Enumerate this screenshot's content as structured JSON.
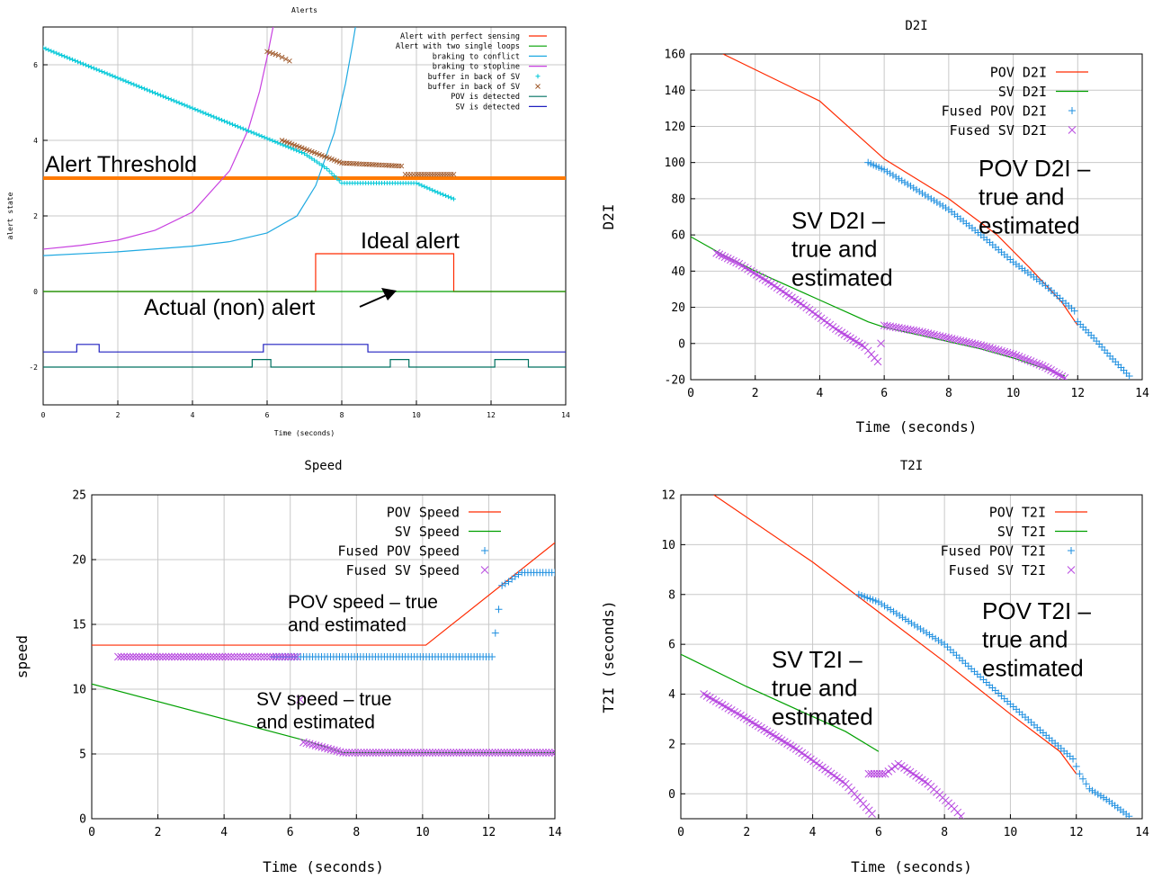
{
  "chart_data": [
    {
      "id": "alerts",
      "type": "line",
      "title": "Alerts",
      "xlabel": "Time (seconds)",
      "ylabel": "alert state",
      "xlim": [
        0,
        14
      ],
      "ylim": [
        -3,
        7
      ],
      "xticks": [
        0,
        2,
        4,
        6,
        8,
        10,
        12,
        14
      ],
      "yticks": [
        -2,
        0,
        2,
        4,
        6
      ],
      "grid": true,
      "legend_position": "top-right",
      "series": [
        {
          "name": "Alert with perfect sensing",
          "kind": "line",
          "color": "#ff2a00",
          "x": [
            0,
            7.3,
            7.3,
            11.0,
            11.0,
            14
          ],
          "y": [
            0,
            0,
            1,
            1,
            0,
            0
          ]
        },
        {
          "name": "Alert with two single loops",
          "kind": "line",
          "color": "#00a000",
          "x": [
            0,
            14
          ],
          "y": [
            0,
            0
          ]
        },
        {
          "name": "braking to conflict",
          "kind": "line",
          "color": "#1fa9e1",
          "x": [
            0,
            2,
            4,
            5,
            6,
            6.8,
            7.3,
            7.8,
            8.1,
            8.3,
            8.4
          ],
          "y": [
            0.95,
            1.05,
            1.2,
            1.32,
            1.55,
            2.0,
            2.8,
            4.2,
            5.5,
            6.6,
            7.2
          ]
        },
        {
          "name": "braking to stopline",
          "kind": "line",
          "color": "#c840e0",
          "x": [
            0,
            1,
            2,
            3,
            4,
            5,
            5.5,
            5.8,
            6.0,
            6.1,
            6.2
          ],
          "y": [
            1.12,
            1.22,
            1.36,
            1.62,
            2.1,
            3.2,
            4.3,
            5.3,
            6.2,
            6.7,
            7.2
          ]
        },
        {
          "name": "buffer in back of SV",
          "kind": "plus",
          "color": "#00c8d8",
          "x": [
            0,
            1,
            2,
            3,
            4,
            5,
            6,
            7,
            7.6,
            8,
            9,
            10,
            10.5,
            11
          ],
          "y": [
            6.45,
            6.05,
            5.65,
            5.25,
            4.85,
            4.45,
            4.05,
            3.65,
            3.25,
            2.87,
            2.87,
            2.87,
            2.65,
            2.45
          ]
        },
        {
          "name": "buffer in back of SV",
          "kind": "cross",
          "color": "#a05a2c",
          "x": [
            6.0,
            6.15,
            6.3,
            6.4,
            6.5,
            6.6,
            6.4,
            6.8,
            7.2,
            7.6,
            8.0,
            8.4,
            8.8,
            9.2,
            9.6,
            9.7,
            10.0,
            10.4,
            10.8,
            11.0
          ],
          "y": [
            6.35,
            6.3,
            6.25,
            6.2,
            6.15,
            6.1,
            4.0,
            3.85,
            3.7,
            3.55,
            3.4,
            3.38,
            3.36,
            3.34,
            3.32,
            3.1,
            3.1,
            3.1,
            3.1,
            3.1
          ]
        },
        {
          "name": "POV is detected",
          "kind": "step",
          "color": "#007060",
          "x": [
            0,
            5.6,
            5.6,
            6.1,
            6.1,
            9.3,
            9.3,
            9.8,
            9.8,
            12.1,
            12.1,
            13.0,
            13.0,
            14
          ],
          "y": [
            -2.0,
            -2.0,
            -1.8,
            -1.8,
            -2.0,
            -2.0,
            -1.8,
            -1.8,
            -2.0,
            -2.0,
            -1.8,
            -1.8,
            -2.0,
            -2.0
          ]
        },
        {
          "name": "SV is detected",
          "kind": "step",
          "color": "#2020c0",
          "x": [
            0,
            0.9,
            0.9,
            1.5,
            1.5,
            5.9,
            5.9,
            8.7,
            8.7,
            14
          ],
          "y": [
            -1.6,
            -1.6,
            -1.4,
            -1.4,
            -1.6,
            -1.6,
            -1.4,
            -1.4,
            -1.6,
            -1.6
          ]
        }
      ],
      "threshold": {
        "label": "Alert Threshold",
        "y": 3.0,
        "color": "#ff7a00"
      },
      "annotations": [
        {
          "text": "Ideal alert",
          "color": "#000000"
        },
        {
          "text": "Actual (non) alert",
          "color": "#000000"
        }
      ]
    },
    {
      "id": "d2i",
      "type": "line",
      "title": "D2I",
      "xlabel": "Time (seconds)",
      "ylabel": "D2I",
      "xlim": [
        0,
        14
      ],
      "ylim": [
        -20,
        160
      ],
      "xticks": [
        0,
        2,
        4,
        6,
        8,
        10,
        12,
        14
      ],
      "yticks": [
        -20,
        0,
        20,
        40,
        60,
        80,
        100,
        120,
        140,
        160
      ],
      "grid": true,
      "legend_position": "top-right",
      "series": [
        {
          "name": "POV D2I",
          "kind": "line",
          "color": "#ff2a00",
          "x": [
            1.0,
            4,
            6,
            8,
            9.5,
            10.5,
            11.5,
            12.0
          ],
          "y": [
            160,
            134,
            102,
            80,
            60,
            42,
            23,
            10
          ]
        },
        {
          "name": "SV D2I",
          "kind": "line",
          "color": "#00a000",
          "x": [
            0,
            1,
            2,
            3,
            4,
            5,
            5.5,
            6.0,
            7,
            8,
            9,
            10,
            11,
            11.6
          ],
          "y": [
            59,
            49,
            40,
            32,
            24,
            16,
            12,
            9,
            5,
            1,
            -3,
            -8,
            -14,
            -18
          ]
        },
        {
          "name": "Fused POV D2I",
          "kind": "plus",
          "color": "#1e8fe0",
          "x": [
            5.5,
            6,
            7,
            8,
            9,
            10,
            11,
            11.9,
            12.0,
            12.5,
            13,
            13.6
          ],
          "y": [
            100,
            96,
            85,
            74,
            60,
            45,
            32,
            18,
            12,
            3,
            -7,
            -18
          ]
        },
        {
          "name": "Fused SV D2I",
          "kind": "cross",
          "color": "#b84ae0",
          "x": [
            0.8,
            1.5,
            2.5,
            3.5,
            4.5,
            5.4,
            5.8,
            6,
            7,
            8,
            9,
            10,
            11,
            11.6
          ],
          "y": [
            50,
            44,
            33,
            21,
            8,
            -2,
            -10,
            10,
            7,
            3,
            -1,
            -6,
            -13,
            -19
          ]
        }
      ],
      "annotations": [
        {
          "text": "POV D2I –\ntrue and\nestimated",
          "color": "#000000"
        },
        {
          "text": "SV D2I –\ntrue and\nestimated",
          "color": "#000000"
        }
      ]
    },
    {
      "id": "speed",
      "type": "line",
      "title": "Speed",
      "xlabel": "Time (seconds)",
      "ylabel": "speed",
      "xlim": [
        0,
        14
      ],
      "ylim": [
        0,
        25
      ],
      "xticks": [
        0,
        2,
        4,
        6,
        8,
        10,
        12,
        14
      ],
      "yticks": [
        0,
        5,
        10,
        15,
        20,
        25
      ],
      "grid": true,
      "legend_position": "top-right",
      "series": [
        {
          "name": "POV Speed",
          "kind": "line",
          "color": "#ff2a00",
          "x": [
            0,
            10.1,
            14
          ],
          "y": [
            13.4,
            13.4,
            21.3
          ]
        },
        {
          "name": "SV Speed",
          "kind": "line",
          "color": "#00a000",
          "x": [
            0,
            6.5,
            7.6,
            14
          ],
          "y": [
            10.4,
            6.0,
            5.1,
            5.1
          ]
        },
        {
          "name": "Fused POV Speed",
          "kind": "plus",
          "color": "#1e8fe0",
          "x": [
            5.5,
            12.1,
            12.4,
            12.6,
            12.8,
            13.0,
            14.0
          ],
          "y": [
            12.5,
            12.5,
            18.0,
            18.3,
            18.7,
            19.0,
            19.0
          ]
        },
        {
          "name": "Fused SV Speed",
          "kind": "cross",
          "color": "#b84ae0",
          "x": [
            0.8,
            6.2,
            6.4,
            7.6,
            14.0
          ],
          "y": [
            12.5,
            12.5,
            5.9,
            5.1,
            5.1
          ]
        }
      ],
      "annotations": [
        {
          "text": "POV speed – true\nand estimated",
          "color": "#000000"
        },
        {
          "text": "SV speed – true\nand estimated",
          "color": "#000000"
        }
      ]
    },
    {
      "id": "t2i",
      "type": "line",
      "title": "T2I",
      "xlabel": "Time (seconds)",
      "ylabel": "T2I (seconds)",
      "xlim": [
        0,
        14
      ],
      "ylim": [
        -1,
        12
      ],
      "xticks": [
        0,
        2,
        4,
        6,
        8,
        10,
        12,
        14
      ],
      "yticks": [
        0,
        2,
        4,
        6,
        8,
        10,
        12
      ],
      "grid": true,
      "legend_position": "top-right",
      "series": [
        {
          "name": "POV T2I",
          "kind": "line",
          "color": "#ff2a00",
          "x": [
            1.0,
            4,
            6,
            8,
            10,
            11.5,
            12.0
          ],
          "y": [
            12,
            9.3,
            7.3,
            5.3,
            3.2,
            1.7,
            0.8
          ]
        },
        {
          "name": "SV T2I",
          "kind": "line",
          "color": "#00a000",
          "x": [
            0,
            2,
            4,
            5,
            6.0
          ],
          "y": [
            5.6,
            4.3,
            3.1,
            2.5,
            1.7
          ]
        },
        {
          "name": "Fused POV T2I",
          "kind": "plus",
          "color": "#1e8fe0",
          "x": [
            5.4,
            6,
            8,
            10,
            11.9,
            12.1,
            12.4,
            13,
            13.6
          ],
          "y": [
            8.0,
            7.7,
            6.0,
            3.6,
            1.4,
            0.8,
            0.2,
            -0.3,
            -0.9
          ]
        },
        {
          "name": "Fused SV T2I",
          "kind": "cross",
          "color": "#b84ae0",
          "x": [
            0.7,
            2,
            3.5,
            5,
            5.8,
            5.7,
            6.2,
            6.6,
            7.5,
            8.3,
            8.5
          ],
          "y": [
            4.0,
            3.0,
            1.8,
            0.4,
            -0.8,
            0.8,
            0.8,
            1.2,
            0.4,
            -0.6,
            -0.9
          ]
        }
      ],
      "annotations": [
        {
          "text": "POV T2I –\ntrue and\nestimated",
          "color": "#000000"
        },
        {
          "text": "SV T2I –\ntrue and\nestimated",
          "color": "#000000"
        }
      ]
    }
  ]
}
